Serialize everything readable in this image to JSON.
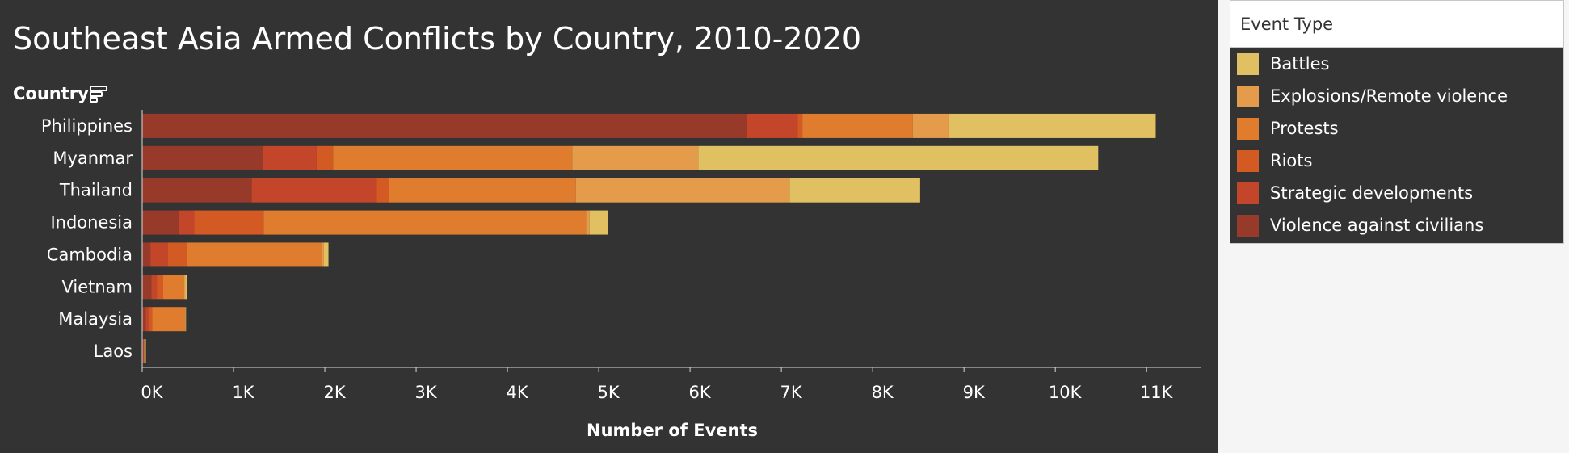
{
  "title": "Southeast Asia Armed Conflicts by Country, 2010-2020",
  "row_header": "Country",
  "legend": {
    "title": "Event Type",
    "items": [
      {
        "label": "Battles",
        "color": "#e0c060"
      },
      {
        "label": "Explosions/Remote violence",
        "color": "#e49c4a"
      },
      {
        "label": "Protests",
        "color": "#df7c2e"
      },
      {
        "label": "Riots",
        "color": "#d45a23"
      },
      {
        "label": "Strategic developments",
        "color": "#c4462a"
      },
      {
        "label": "Violence against civilians",
        "color": "#983a2a"
      }
    ]
  },
  "chart_data": {
    "type": "bar",
    "orientation": "horizontal",
    "stacked": true,
    "title": "Southeast Asia Armed Conflicts by Country, 2010-2020",
    "xlabel": "Number of Events",
    "ylabel": "Country",
    "xlim": [
      0,
      11600
    ],
    "xticks": [
      0,
      1000,
      2000,
      3000,
      4000,
      5000,
      6000,
      7000,
      8000,
      9000,
      10000,
      11000
    ],
    "xtick_labels": [
      "0K",
      "1K",
      "2K",
      "3K",
      "4K",
      "5K",
      "6K",
      "7K",
      "8K",
      "9K",
      "10K",
      "11K"
    ],
    "categories": [
      "Philippines",
      "Myanmar",
      "Thailand",
      "Indonesia",
      "Cambodia",
      "Vietnam",
      "Malaysia",
      "Laos"
    ],
    "series": [
      {
        "name": "Violence against civilians",
        "color": "#983a2a",
        "values": [
          6620,
          1320,
          1200,
          400,
          90,
          100,
          40,
          10
        ]
      },
      {
        "name": "Strategic developments",
        "color": "#c4462a",
        "values": [
          560,
          590,
          1370,
          170,
          190,
          60,
          30,
          5
        ]
      },
      {
        "name": "Riots",
        "color": "#d45a23",
        "values": [
          50,
          180,
          130,
          760,
          210,
          70,
          40,
          5
        ]
      },
      {
        "name": "Protests",
        "color": "#df7c2e",
        "values": [
          1210,
          2620,
          2050,
          3530,
          1480,
          230,
          360,
          10
        ]
      },
      {
        "name": "Explosions/Remote violence",
        "color": "#e49c4a",
        "values": [
          390,
          1380,
          2340,
          40,
          20,
          10,
          5,
          5
        ]
      },
      {
        "name": "Battles",
        "color": "#e0c060",
        "values": [
          2270,
          4380,
          1430,
          200,
          50,
          20,
          5,
          5
        ]
      }
    ]
  }
}
